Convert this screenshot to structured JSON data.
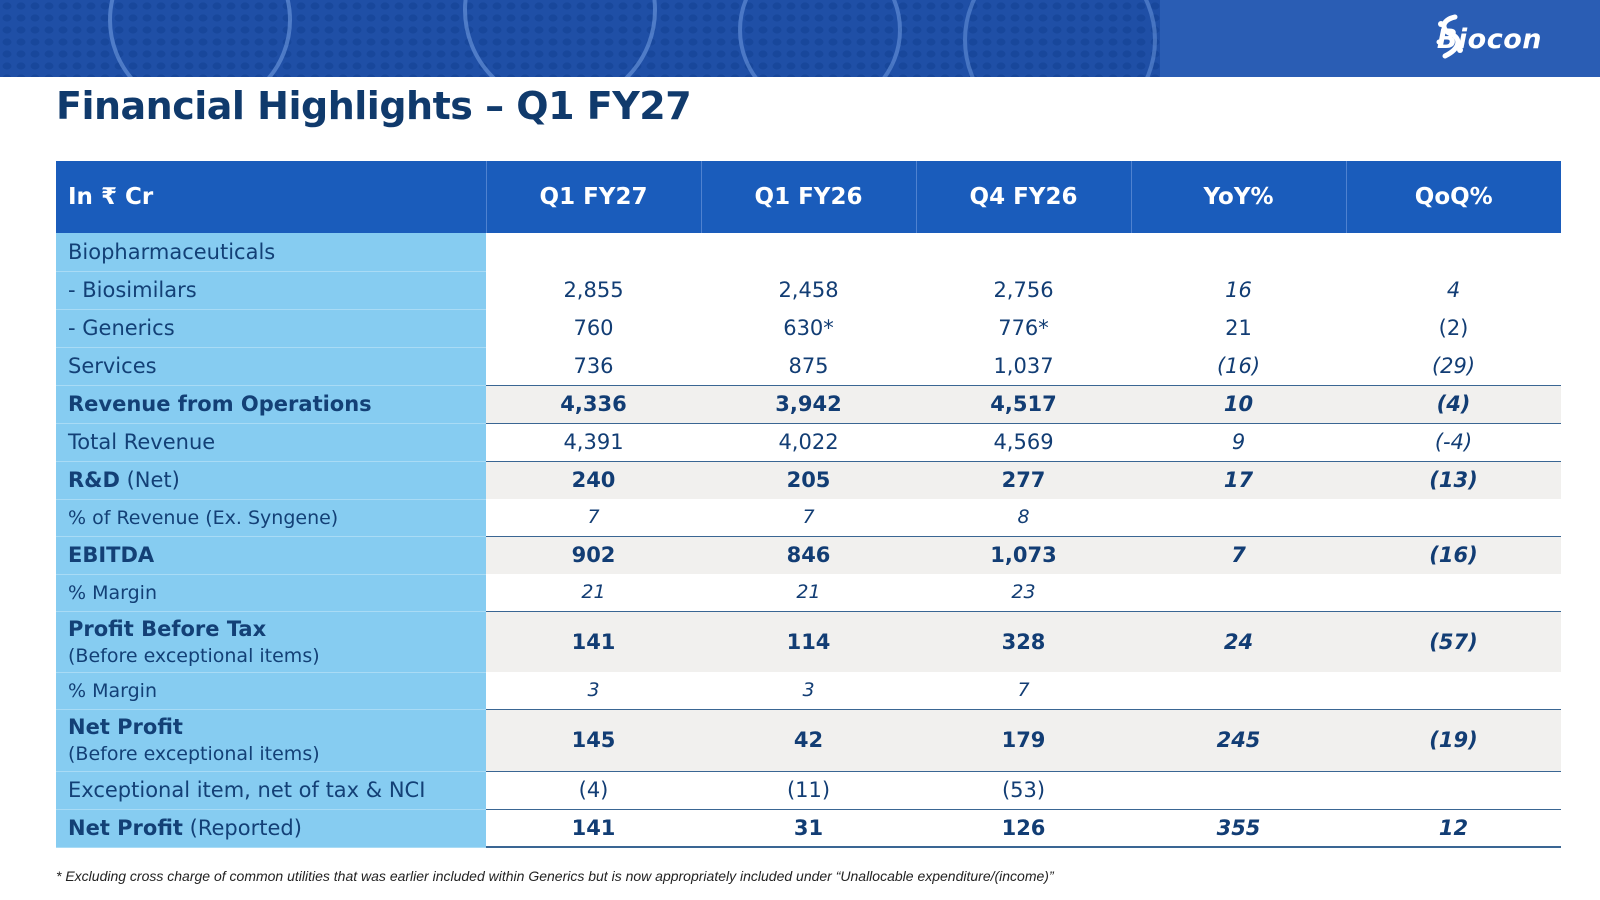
{
  "brand": {
    "logo_text": "Biocon",
    "logo_icon": "biocon-swirl-logo-icon"
  },
  "title": "Financial Highlights – Q1 FY27",
  "table": {
    "headers": [
      "In ₹ Cr",
      "Q1 FY27",
      "Q1 FY26",
      "Q4 FY26",
      "YoY%",
      "QoQ%"
    ],
    "rows": [
      {
        "label": "Biopharmaceuticals",
        "values": [
          "",
          "",
          "",
          "",
          ""
        ]
      },
      {
        "label": "- Biosimilars",
        "values": [
          "2,855",
          "2,458",
          "2,756",
          "16",
          "4"
        ]
      },
      {
        "label": "- Generics",
        "values": [
          "760",
          "630*",
          "776*",
          "21",
          "(2)"
        ]
      },
      {
        "label": "Services",
        "values": [
          "736",
          "875",
          "1,037",
          "(16)",
          "(29)"
        ]
      },
      {
        "label": "Revenue from Operations",
        "values": [
          "4,336",
          "3,942",
          "4,517",
          "10",
          "(4)"
        ]
      },
      {
        "label": "Total Revenue",
        "values": [
          "4,391",
          "4,022",
          "4,569",
          "9",
          "(-4)"
        ]
      },
      {
        "label": "R&D",
        "label_suffix": "(Net)",
        "values": [
          "240",
          "205",
          "277",
          "17",
          "(13)"
        ]
      },
      {
        "label": "% of Revenue (Ex. Syngene)",
        "values": [
          "7",
          "7",
          "8",
          "",
          ""
        ]
      },
      {
        "label": "EBITDA",
        "values": [
          "902",
          "846",
          "1,073",
          "7",
          "(16)"
        ]
      },
      {
        "label": "% Margin",
        "values": [
          "21",
          "21",
          "23",
          "",
          ""
        ]
      },
      {
        "label": "Profit Before Tax",
        "label_line2": "(Before exceptional items)",
        "values": [
          "141",
          "114",
          "328",
          "24",
          "(57)"
        ]
      },
      {
        "label": "% Margin",
        "values": [
          "3",
          "3",
          "7",
          "",
          ""
        ]
      },
      {
        "label": "Net Profit",
        "label_line2": "(Before exceptional items)",
        "values": [
          "145",
          "42",
          "179",
          "245",
          "(19)"
        ]
      },
      {
        "label": "Exceptional item, net of tax & NCI",
        "values": [
          "(4)",
          "(11)",
          "(53)",
          "",
          ""
        ]
      },
      {
        "label": "Net Profit",
        "label_suffix": "(Reported)",
        "values": [
          "141",
          "31",
          "126",
          "355",
          "12"
        ]
      }
    ]
  },
  "footnote": "* Excluding cross charge of common utilities that was earlier included within Generics but is now appropriately included under “Unallocable expenditure/(income)”",
  "colors": {
    "header_blue": "#1a5cbb",
    "label_column": "#86ccf1",
    "text_navy": "#123d74",
    "row_shade": "#f1f0ee"
  }
}
